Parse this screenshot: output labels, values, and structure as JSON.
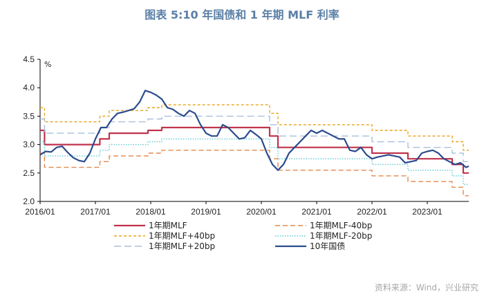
{
  "title": "图表 5:10 年国债和 1 年期 MLF 利率",
  "source": "资料来源：Wind，兴业研究",
  "chart_data": {
    "type": "line",
    "title": "图表 5:10 年国债和 1 年期 MLF 利率",
    "ylabel": "%",
    "ylim": [
      2.0,
      4.5
    ],
    "yticks": [
      "2.0",
      "2.5",
      "3.0",
      "3.5",
      "4.0",
      "4.5"
    ],
    "xlim": [
      2016.0,
      2023.75
    ],
    "xticks": [
      "2016/01",
      "2017/01",
      "2018/01",
      "2019/01",
      "2020/01",
      "2021/01",
      "2022/01",
      "2023/01"
    ],
    "series": [
      {
        "name": "1年期MLF",
        "color": "#c0314a",
        "style": "solid",
        "steps": [
          [
            2016.0,
            3.25
          ],
          [
            2016.08,
            3.0
          ],
          [
            2017.08,
            3.1
          ],
          [
            2017.25,
            3.2
          ],
          [
            2017.95,
            3.25
          ],
          [
            2018.2,
            3.3
          ],
          [
            2020.15,
            3.15
          ],
          [
            2020.3,
            2.95
          ],
          [
            2022.0,
            2.85
          ],
          [
            2022.65,
            2.75
          ],
          [
            2023.45,
            2.65
          ],
          [
            2023.65,
            2.5
          ],
          [
            2023.75,
            2.5
          ]
        ]
      },
      {
        "name": "1年期MLF-40bp",
        "color": "#e3874a",
        "style": "dash",
        "steps": [
          [
            2016.0,
            2.85
          ],
          [
            2016.08,
            2.6
          ],
          [
            2017.08,
            2.7
          ],
          [
            2017.25,
            2.8
          ],
          [
            2017.95,
            2.85
          ],
          [
            2018.2,
            2.9
          ],
          [
            2020.15,
            2.75
          ],
          [
            2020.3,
            2.55
          ],
          [
            2022.0,
            2.45
          ],
          [
            2022.65,
            2.35
          ],
          [
            2023.45,
            2.25
          ],
          [
            2023.65,
            2.1
          ],
          [
            2023.75,
            2.1
          ]
        ]
      },
      {
        "name": "1年期MLF+40bp",
        "color": "#e8a317",
        "style": "shortdash",
        "steps": [
          [
            2016.0,
            3.65
          ],
          [
            2016.08,
            3.4
          ],
          [
            2017.08,
            3.5
          ],
          [
            2017.25,
            3.6
          ],
          [
            2017.95,
            3.65
          ],
          [
            2018.2,
            3.7
          ],
          [
            2020.15,
            3.55
          ],
          [
            2020.3,
            3.35
          ],
          [
            2022.0,
            3.25
          ],
          [
            2022.65,
            3.15
          ],
          [
            2023.45,
            3.05
          ],
          [
            2023.65,
            2.9
          ],
          [
            2023.75,
            2.9
          ]
        ]
      },
      {
        "name": "1年期MLF-20bp",
        "color": "#5bc8d4",
        "style": "dot",
        "steps": [
          [
            2016.0,
            3.05
          ],
          [
            2016.08,
            2.8
          ],
          [
            2017.08,
            2.9
          ],
          [
            2017.25,
            3.0
          ],
          [
            2017.95,
            3.05
          ],
          [
            2018.2,
            3.1
          ],
          [
            2020.15,
            2.95
          ],
          [
            2020.3,
            2.75
          ],
          [
            2022.0,
            2.65
          ],
          [
            2022.65,
            2.55
          ],
          [
            2023.45,
            2.45
          ],
          [
            2023.65,
            2.3
          ],
          [
            2023.75,
            2.3
          ]
        ]
      },
      {
        "name": "1年期MLF+20bp",
        "color": "#a9bfdc",
        "style": "longdash",
        "steps": [
          [
            2016.0,
            3.45
          ],
          [
            2016.08,
            3.2
          ],
          [
            2017.08,
            3.3
          ],
          [
            2017.25,
            3.4
          ],
          [
            2017.95,
            3.45
          ],
          [
            2018.2,
            3.5
          ],
          [
            2020.15,
            3.35
          ],
          [
            2020.3,
            3.15
          ],
          [
            2022.0,
            3.05
          ],
          [
            2022.65,
            2.95
          ],
          [
            2023.45,
            2.85
          ],
          [
            2023.65,
            2.7
          ],
          [
            2023.75,
            2.7
          ]
        ]
      },
      {
        "name": "10年国债",
        "color": "#2a4a8c",
        "style": "solid",
        "points": [
          [
            2016.0,
            2.82
          ],
          [
            2016.1,
            2.88
          ],
          [
            2016.2,
            2.87
          ],
          [
            2016.3,
            2.95
          ],
          [
            2016.4,
            2.97
          ],
          [
            2016.5,
            2.86
          ],
          [
            2016.6,
            2.77
          ],
          [
            2016.7,
            2.72
          ],
          [
            2016.8,
            2.7
          ],
          [
            2016.9,
            2.85
          ],
          [
            2017.0,
            3.1
          ],
          [
            2017.1,
            3.3
          ],
          [
            2017.2,
            3.3
          ],
          [
            2017.3,
            3.45
          ],
          [
            2017.4,
            3.55
          ],
          [
            2017.5,
            3.57
          ],
          [
            2017.6,
            3.6
          ],
          [
            2017.7,
            3.63
          ],
          [
            2017.8,
            3.75
          ],
          [
            2017.9,
            3.95
          ],
          [
            2018.0,
            3.92
          ],
          [
            2018.1,
            3.87
          ],
          [
            2018.2,
            3.8
          ],
          [
            2018.3,
            3.65
          ],
          [
            2018.4,
            3.62
          ],
          [
            2018.5,
            3.55
          ],
          [
            2018.6,
            3.5
          ],
          [
            2018.7,
            3.6
          ],
          [
            2018.8,
            3.55
          ],
          [
            2018.9,
            3.35
          ],
          [
            2019.0,
            3.2
          ],
          [
            2019.1,
            3.15
          ],
          [
            2019.2,
            3.15
          ],
          [
            2019.3,
            3.35
          ],
          [
            2019.4,
            3.3
          ],
          [
            2019.5,
            3.2
          ],
          [
            2019.6,
            3.1
          ],
          [
            2019.7,
            3.12
          ],
          [
            2019.8,
            3.25
          ],
          [
            2019.9,
            3.18
          ],
          [
            2020.0,
            3.1
          ],
          [
            2020.1,
            2.85
          ],
          [
            2020.2,
            2.65
          ],
          [
            2020.3,
            2.55
          ],
          [
            2020.4,
            2.65
          ],
          [
            2020.5,
            2.85
          ],
          [
            2020.6,
            2.95
          ],
          [
            2020.7,
            3.05
          ],
          [
            2020.8,
            3.15
          ],
          [
            2020.9,
            3.25
          ],
          [
            2021.0,
            3.2
          ],
          [
            2021.1,
            3.25
          ],
          [
            2021.2,
            3.2
          ],
          [
            2021.3,
            3.15
          ],
          [
            2021.4,
            3.1
          ],
          [
            2021.5,
            3.1
          ],
          [
            2021.6,
            2.9
          ],
          [
            2021.7,
            2.88
          ],
          [
            2021.8,
            2.95
          ],
          [
            2021.9,
            2.82
          ],
          [
            2022.0,
            2.75
          ],
          [
            2022.1,
            2.78
          ],
          [
            2022.2,
            2.8
          ],
          [
            2022.3,
            2.82
          ],
          [
            2022.4,
            2.8
          ],
          [
            2022.5,
            2.78
          ],
          [
            2022.6,
            2.68
          ],
          [
            2022.7,
            2.7
          ],
          [
            2022.8,
            2.72
          ],
          [
            2022.9,
            2.85
          ],
          [
            2023.0,
            2.88
          ],
          [
            2023.1,
            2.9
          ],
          [
            2023.2,
            2.85
          ],
          [
            2023.3,
            2.75
          ],
          [
            2023.4,
            2.7
          ],
          [
            2023.5,
            2.65
          ],
          [
            2023.6,
            2.68
          ],
          [
            2023.7,
            2.6
          ],
          [
            2023.75,
            2.62
          ]
        ]
      }
    ],
    "legend": [
      {
        "label": "1年期MLF",
        "series": 0
      },
      {
        "label": "1年期MLF-40bp",
        "series": 1
      },
      {
        "label": "1年期MLF+40bp",
        "series": 2
      },
      {
        "label": "1年期MLF-20bp",
        "series": 3
      },
      {
        "label": "1年期MLF+20bp",
        "series": 4
      },
      {
        "label": "10年国债",
        "series": 5
      }
    ]
  }
}
